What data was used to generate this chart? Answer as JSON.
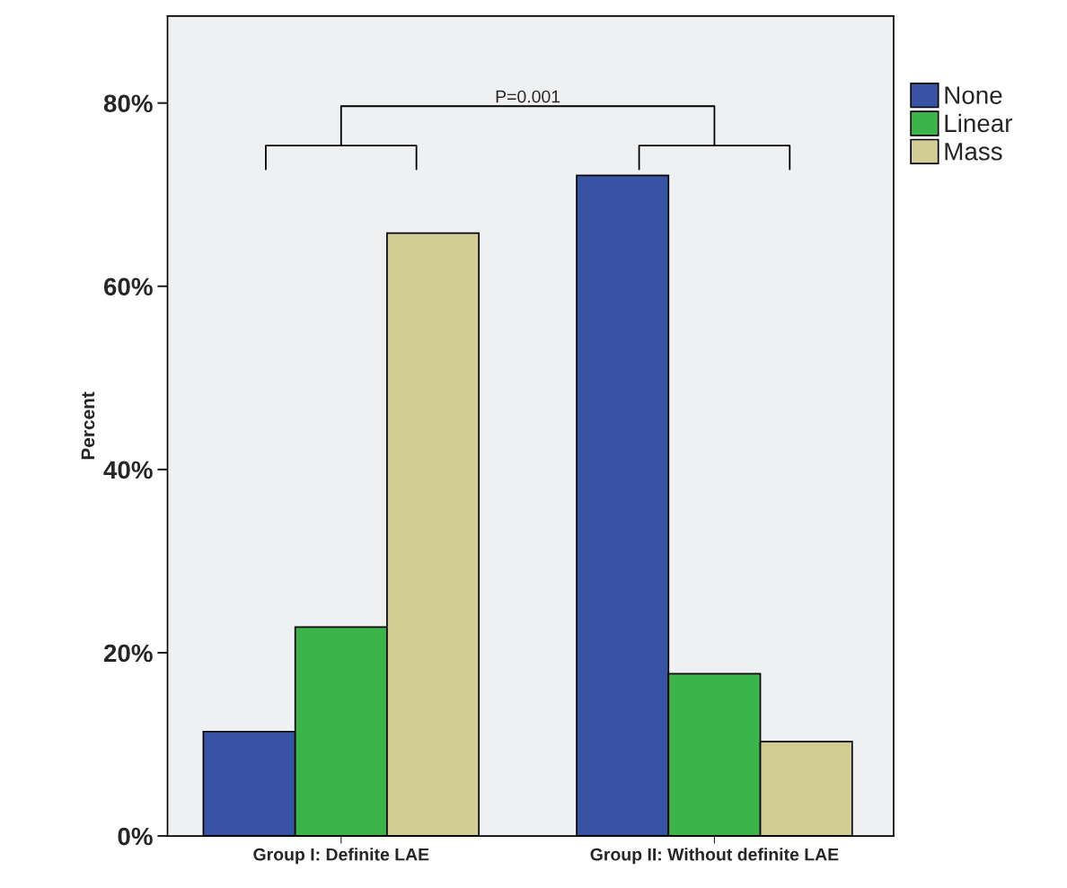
{
  "chart_data": {
    "type": "bar",
    "ylabel": "Percent",
    "categories": [
      "Group I: Definite LAE",
      "Group II: Without definite LAE"
    ],
    "series": [
      {
        "name": "None",
        "color": "#3953a4",
        "values": [
          11.4,
          72.1
        ]
      },
      {
        "name": "Linear",
        "color": "#3bb44a",
        "values": [
          22.8,
          17.7
        ]
      },
      {
        "name": "Mass",
        "color": "#d2cc95",
        "values": [
          65.8,
          10.3
        ]
      }
    ],
    "ylim": [
      0,
      89.5
    ],
    "yticks": [
      {
        "value": 0,
        "label": "0%"
      },
      {
        "value": 20,
        "label": "20%"
      },
      {
        "value": 40,
        "label": "40%"
      },
      {
        "value": 60,
        "label": "60%"
      },
      {
        "value": 80,
        "label": "80%"
      }
    ],
    "annotations": [
      "P=0.001"
    ],
    "grid": false,
    "legend": "top right"
  }
}
